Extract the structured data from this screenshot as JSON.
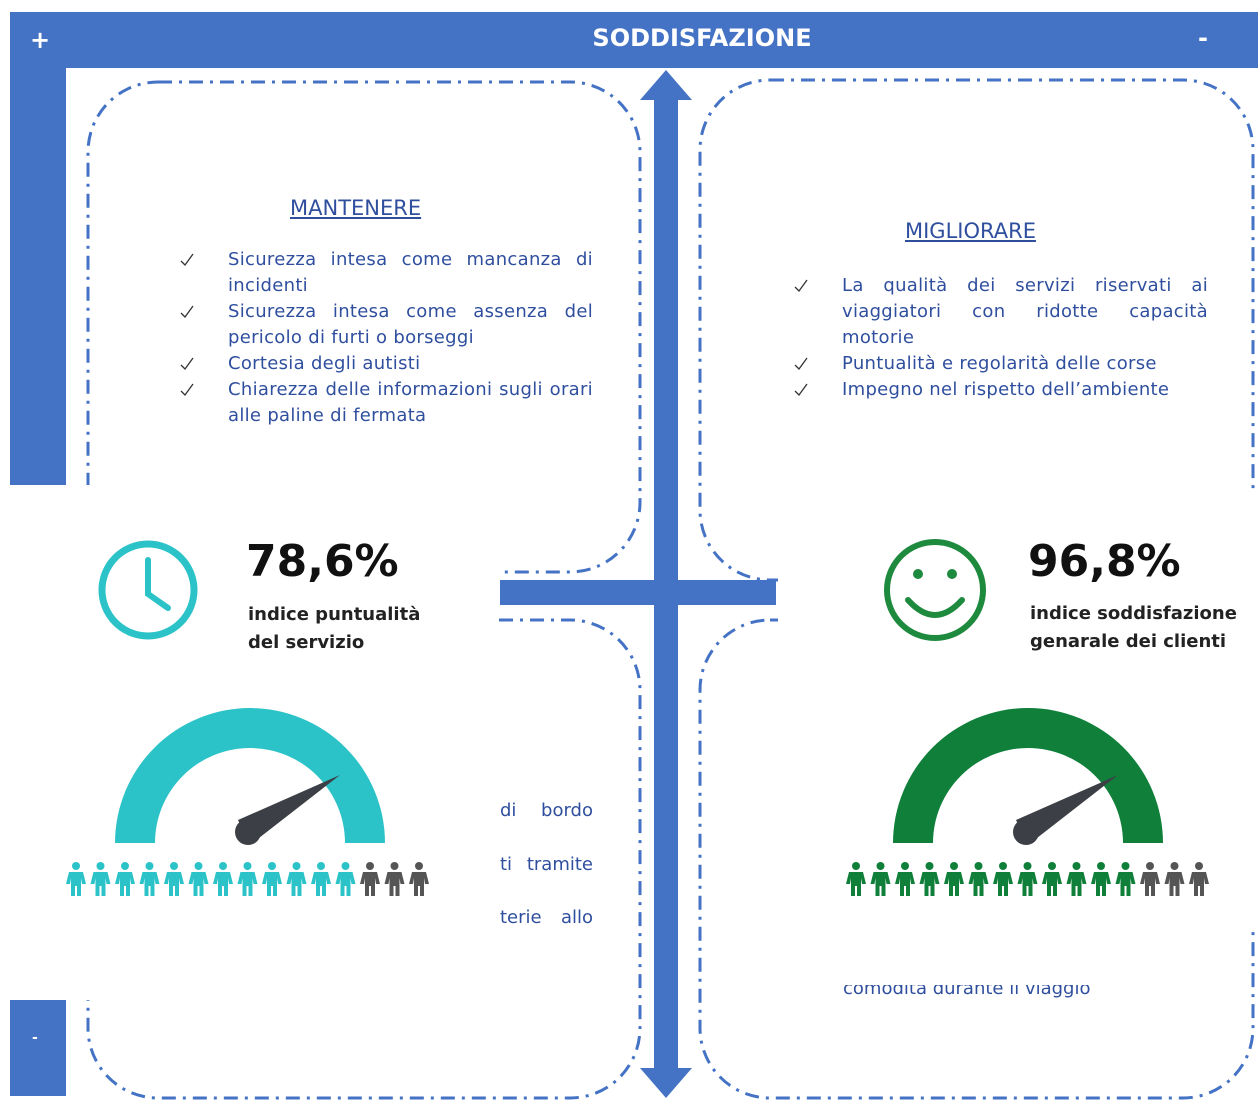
{
  "header": {
    "left_sign": "+",
    "title": "SODDISFAZIONE",
    "right_sign": "-"
  },
  "side": {
    "bottom_sign": "-"
  },
  "mantenere": {
    "title": "MANTENERE",
    "items": [
      "Sicurezza intesa come mancanza di incidenti",
      "Sicurezza intesa come assenza del pericolo di furti o borseggi",
      "Cortesia degli autisti",
      "Chiarezza delle informazioni sugli orari alle paline di fermata"
    ]
  },
  "migliorare": {
    "title": "MIGLIORARE",
    "items": [
      "La qualità dei servizi riservati ai viaggiatori con ridotte capacità motorie",
      "Puntualità e regolarità delle corse",
      "Impegno nel rispetto dell’ambiente"
    ]
  },
  "partial_left": {
    "lines": [
      "di bordo",
      "ti tramite",
      "terie allo"
    ]
  },
  "partial_right": {
    "lines": [
      "comodità durante il viaggio"
    ]
  },
  "kpi_left": {
    "value": "78,6%",
    "label_lines": [
      "indice puntualità",
      "del servizio"
    ]
  },
  "kpi_right": {
    "value": "96,8%",
    "label_lines": [
      "indice soddisfazione",
      "genarale dei clienti"
    ]
  }
}
